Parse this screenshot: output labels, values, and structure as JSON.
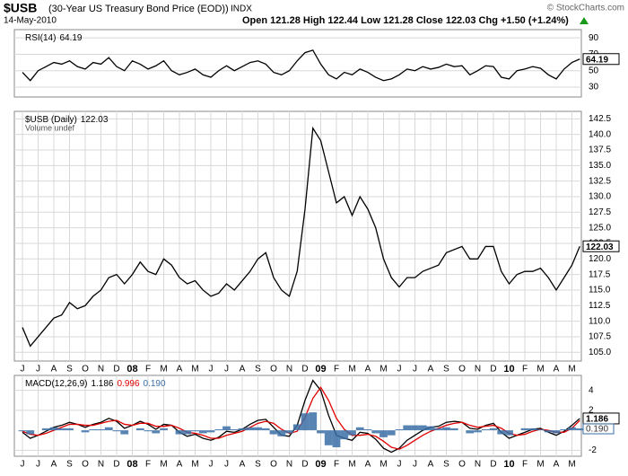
{
  "header": {
    "symbol": "$USB",
    "name": "(30-Year US Treasury Bond Price (EOD))",
    "exchange": "INDX",
    "date": "14-May-2010",
    "quote": "Open 121.28  High 122.44  Low 121.28  Close 122.03  Chg +1.50 (+1.24%)",
    "credit": "© StockCharts.com"
  },
  "chart_data": [
    {
      "type": "line",
      "ylim": [
        18,
        100
      ],
      "yticks": [
        30,
        50,
        70,
        90
      ],
      "grid": true,
      "series": [
        {
          "name": "RSI(14)",
          "color": "#000000",
          "values": [
            48,
            38,
            50,
            55,
            60,
            58,
            62,
            55,
            52,
            60,
            58,
            66,
            55,
            50,
            62,
            58,
            52,
            56,
            62,
            50,
            45,
            48,
            52,
            45,
            42,
            50,
            56,
            50,
            55,
            60,
            62,
            58,
            48,
            45,
            50,
            62,
            72,
            75,
            58,
            45,
            40,
            48,
            45,
            52,
            48,
            42,
            38,
            40,
            45,
            52,
            50,
            55,
            52,
            54,
            58,
            55,
            56,
            45,
            50,
            56,
            55,
            42,
            40,
            50,
            52,
            55,
            53,
            45,
            40,
            52,
            60,
            64.19
          ]
        }
      ]
    },
    {
      "type": "line",
      "ylim": [
        103.6,
        143.7
      ],
      "yticks": [
        {
          "value": 105,
          "label": "105.0"
        },
        107.5,
        {
          "value": 110,
          "label": "110.0"
        },
        112.5,
        {
          "value": 115,
          "label": "115.0"
        },
        117.5,
        {
          "value": 120,
          "label": "120.0"
        },
        122.5,
        {
          "value": 125,
          "label": "125.0"
        },
        127.5,
        {
          "value": 130,
          "label": "130.0"
        },
        132.5,
        {
          "value": 135,
          "label": "135.0"
        },
        137.5,
        {
          "value": 140,
          "label": "140.0"
        },
        142.5
      ],
      "grid": true,
      "note": "Volume undef",
      "categories": [
        "J",
        null,
        "J",
        null,
        "A",
        null,
        "S",
        null,
        "O",
        null,
        "N",
        null,
        "D",
        null,
        "08",
        null,
        "F",
        null,
        "M",
        null,
        "A",
        null,
        "M",
        null,
        "J",
        null,
        "J",
        null,
        "A",
        null,
        "S",
        null,
        "O",
        null,
        "N",
        null,
        "D",
        null,
        "09",
        null,
        "F",
        null,
        "M",
        null,
        "A",
        null,
        "M",
        null,
        "J",
        null,
        "J",
        null,
        "A",
        null,
        "S",
        null,
        "O",
        null,
        "N",
        null,
        "D",
        null,
        "10",
        null,
        "F",
        null,
        "M",
        null,
        "A",
        null,
        "M",
        null
      ],
      "series": [
        {
          "name": "$USB (Daily)",
          "color": "#000000",
          "values": [
            109,
            106,
            107.5,
            109,
            110.5,
            111,
            113,
            112,
            112.5,
            114,
            115,
            117,
            117.5,
            116,
            117.5,
            119.5,
            118,
            117.5,
            120,
            119,
            117,
            116,
            116.5,
            115,
            114,
            114.5,
            116,
            115,
            116.5,
            118,
            120,
            121,
            117,
            115,
            114,
            118,
            128,
            141,
            139,
            134,
            129,
            130,
            127,
            130,
            128,
            125,
            120,
            117,
            115.5,
            117,
            117,
            118,
            118.5,
            119,
            121,
            121.5,
            122,
            120,
            120,
            122,
            122,
            118,
            116,
            117.5,
            118,
            118,
            118.5,
            117,
            115,
            117,
            119,
            122.03
          ]
        }
      ]
    },
    {
      "type": "line",
      "ylim": [
        -2.6,
        5.5
      ],
      "yticks": [
        -2,
        2,
        4
      ],
      "grid": true,
      "categories": [
        "J",
        null,
        "J",
        null,
        "A",
        null,
        "S",
        null,
        "O",
        null,
        "N",
        null,
        "D",
        null,
        "08",
        null,
        "F",
        null,
        "M",
        null,
        "A",
        null,
        "M",
        null,
        "J",
        null,
        "J",
        null,
        "A",
        null,
        "S",
        null,
        "O",
        null,
        "N",
        null,
        "D",
        null,
        "09",
        null,
        "F",
        null,
        "M",
        null,
        "A",
        null,
        "M",
        null,
        "J",
        null,
        "J",
        null,
        "A",
        null,
        "S",
        null,
        "O",
        null,
        "N",
        null,
        "D",
        null,
        "10",
        null,
        "F",
        null,
        "M",
        null,
        "A",
        null,
        "M",
        null
      ],
      "series": [
        {
          "name": "MACD(12,26,9)",
          "color": "#000000",
          "values": [
            -0.2,
            -0.8,
            -0.5,
            -0.1,
            0.3,
            0.5,
            0.8,
            0.6,
            0.3,
            0.6,
            0.8,
            1.2,
            0.9,
            0.2,
            0.5,
            0.9,
            0.6,
            0.1,
            0.6,
            0.5,
            -0.2,
            -0.6,
            -0.4,
            -0.8,
            -1.0,
            -0.7,
            -0.1,
            -0.2,
            0.1,
            0.6,
            1.0,
            1.1,
            0.3,
            -0.5,
            -0.6,
            0.5,
            3.0,
            5.0,
            4.0,
            1.5,
            -0.5,
            -0.8,
            -1.0,
            -0.2,
            -0.3,
            -0.9,
            -1.8,
            -2.2,
            -1.8,
            -1.0,
            -0.5,
            0,
            0.3,
            0.4,
            0.8,
            0.9,
            0.8,
            0.2,
            0.1,
            0.5,
            0.7,
            -0.2,
            -0.8,
            -0.5,
            -0.2,
            0.1,
            0.2,
            -0.2,
            -0.5,
            -0.1,
            0.5,
            1.186
          ]
        },
        {
          "color": "#e00000",
          "values": [
            -0.1,
            -0.4,
            -0.5,
            -0.3,
            0.0,
            0.3,
            0.6,
            0.6,
            0.5,
            0.5,
            0.7,
            0.9,
            1.0,
            0.6,
            0.5,
            0.7,
            0.7,
            0.4,
            0.4,
            0.5,
            0.2,
            -0.2,
            -0.3,
            -0.5,
            -0.8,
            -0.8,
            -0.5,
            -0.3,
            -0.1,
            0.3,
            0.7,
            0.9,
            0.7,
            0.1,
            -0.3,
            -0.1,
            1.3,
            3.2,
            4.3,
            3.0,
            1.2,
            0.1,
            -0.5,
            -0.5,
            -0.4,
            -0.6,
            -1.1,
            -1.7,
            -1.9,
            -1.5,
            -1.0,
            -0.5,
            -0.1,
            0.2,
            0.5,
            0.7,
            0.8,
            0.5,
            0.3,
            0.4,
            0.5,
            0.2,
            -0.3,
            -0.5,
            -0.4,
            -0.1,
            0.1,
            0.0,
            -0.2,
            -0.2,
            0.2,
            0.996
          ]
        },
        {
          "type": "bar",
          "color": "#3a6ea5",
          "last_label": "0.190",
          "values": [
            -0.1,
            -0.4,
            0,
            0.2,
            0.3,
            0.2,
            0.2,
            0,
            -0.2,
            0.1,
            0.1,
            0.3,
            -0.1,
            -0.4,
            0,
            0.2,
            -0.1,
            -0.3,
            0.2,
            0,
            -0.4,
            -0.4,
            -0.1,
            -0.3,
            -0.2,
            0.1,
            0.4,
            0.1,
            0.2,
            0.3,
            0.3,
            0.2,
            -0.4,
            -0.6,
            -0.3,
            0.6,
            1.7,
            1.8,
            -0.3,
            -1.5,
            -1.7,
            -0.9,
            -0.5,
            0.3,
            0.1,
            -0.3,
            -0.7,
            -0.5,
            0.1,
            0.5,
            0.5,
            0.5,
            0.4,
            0.2,
            0.3,
            0.2,
            0,
            -0.3,
            -0.2,
            0.1,
            0.2,
            -0.4,
            -0.5,
            0,
            0.2,
            0.2,
            0.1,
            -0.2,
            -0.3,
            0.1,
            0.3,
            0.19
          ]
        }
      ]
    }
  ]
}
